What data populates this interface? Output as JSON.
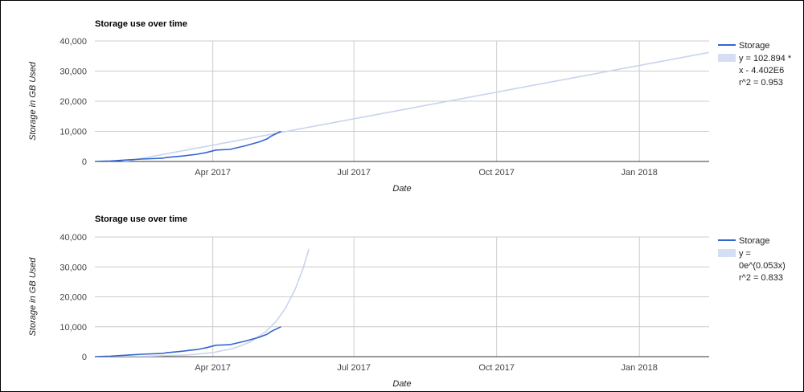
{
  "chart_data": [
    {
      "type": "line",
      "title": "Storage use over time",
      "xlabel": "Date",
      "ylabel": "Storage in GB Used",
      "x_tick_labels": [
        "Apr 2017",
        "Jul 2017",
        "Oct 2017",
        "Jan 2018"
      ],
      "x_tick_dates": [
        "2017-04-01",
        "2017-07-01",
        "2017-10-01",
        "2018-01-01"
      ],
      "x_range": [
        "2017-01-15",
        "2018-02-15"
      ],
      "ylim": [
        0,
        40000
      ],
      "y_ticks": [
        0,
        10000,
        20000,
        30000,
        40000
      ],
      "y_tick_labels": [
        "0",
        "10,000",
        "20,000",
        "30,000",
        "40,000"
      ],
      "grid": true,
      "legend_position": "right",
      "series": [
        {
          "name": "Storage",
          "color": "#3366cc",
          "x": [
            "2017-01-15",
            "2017-01-25",
            "2017-02-05",
            "2017-02-14",
            "2017-02-28",
            "2017-03-02",
            "2017-03-12",
            "2017-03-22",
            "2017-03-28",
            "2017-04-03",
            "2017-04-12",
            "2017-04-22",
            "2017-05-01",
            "2017-05-06",
            "2017-05-09",
            "2017-05-15"
          ],
          "y": [
            0,
            150,
            500,
            800,
            1100,
            1300,
            1800,
            2400,
            3000,
            3800,
            4000,
            5200,
            6500,
            7500,
            8500,
            10000
          ]
        }
      ],
      "trendline": {
        "type": "linear",
        "color": "#c8d3ee",
        "legend_lines": [
          "y = 102.894 *",
          "x - 4.402E6",
          "r^2 = 0.953"
        ],
        "points": {
          "x": [
            "2017-01-15",
            "2018-02-15"
          ],
          "y": [
            -1900,
            36200
          ]
        }
      }
    },
    {
      "type": "line",
      "title": "Storage use over time",
      "xlabel": "Date",
      "ylabel": "Storage in GB Used",
      "x_tick_labels": [
        "Apr 2017",
        "Jul 2017",
        "Oct 2017",
        "Jan 2018"
      ],
      "x_tick_dates": [
        "2017-04-01",
        "2017-07-01",
        "2017-10-01",
        "2018-01-01"
      ],
      "x_range": [
        "2017-01-15",
        "2018-02-15"
      ],
      "ylim": [
        0,
        40000
      ],
      "y_ticks": [
        0,
        10000,
        20000,
        30000,
        40000
      ],
      "y_tick_labels": [
        "0",
        "10,000",
        "20,000",
        "30,000",
        "40,000"
      ],
      "grid": true,
      "legend_position": "right",
      "series": [
        {
          "name": "Storage",
          "color": "#3366cc",
          "x": [
            "2017-01-15",
            "2017-01-25",
            "2017-02-05",
            "2017-02-14",
            "2017-02-28",
            "2017-03-02",
            "2017-03-12",
            "2017-03-22",
            "2017-03-28",
            "2017-04-03",
            "2017-04-12",
            "2017-04-22",
            "2017-05-01",
            "2017-05-06",
            "2017-05-09",
            "2017-05-15"
          ],
          "y": [
            0,
            150,
            500,
            800,
            1100,
            1300,
            1800,
            2400,
            3000,
            3800,
            4000,
            5200,
            6500,
            7500,
            8500,
            10000
          ]
        }
      ],
      "trendline": {
        "type": "exponential",
        "color": "#c8d3ee",
        "legend_lines": [
          "y =",
          "0e^(0.053x)",
          "r^2 = 0.833"
        ],
        "points": {
          "x": [
            "2017-01-15",
            "2017-02-15",
            "2017-03-15",
            "2017-04-01",
            "2017-04-15",
            "2017-04-25",
            "2017-05-05",
            "2017-05-12",
            "2017-05-18",
            "2017-05-24",
            "2017-05-29",
            "2017-06-02"
          ],
          "y": [
            25,
            125,
            550,
            1350,
            2850,
            4850,
            8250,
            11900,
            16300,
            22400,
            29100,
            36000
          ]
        }
      }
    }
  ]
}
